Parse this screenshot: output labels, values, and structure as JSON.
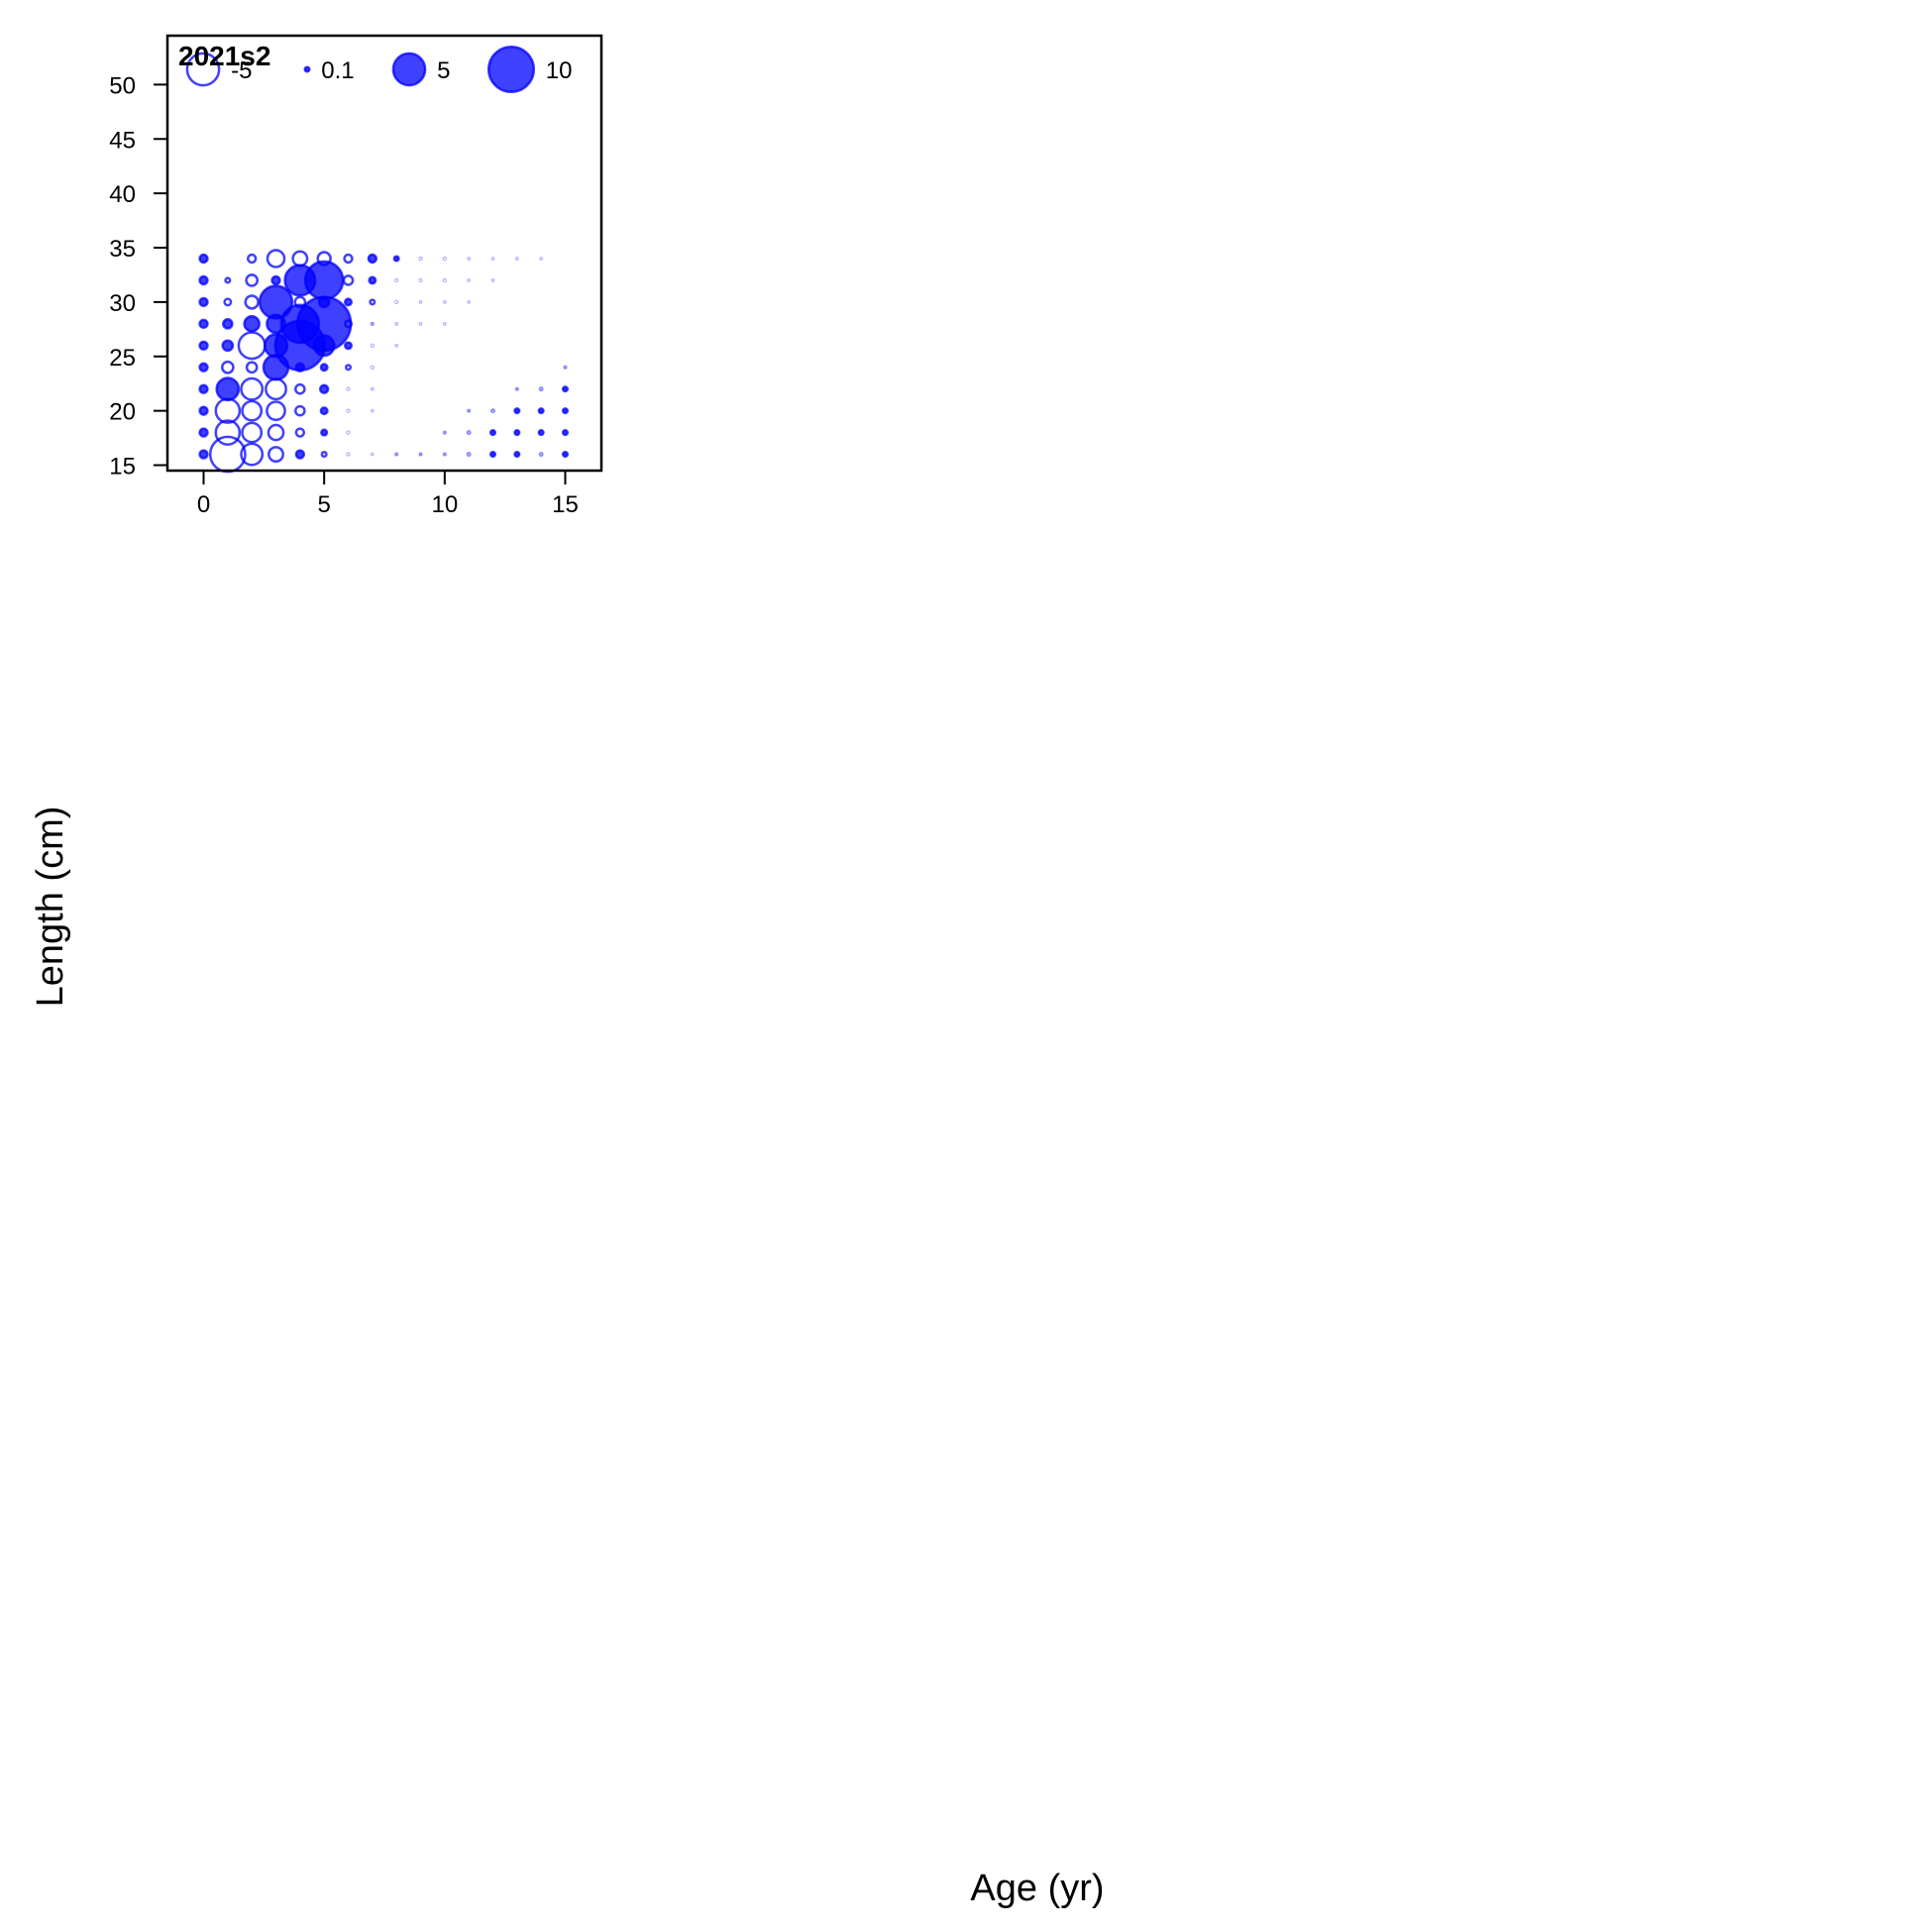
{
  "chart_data": {
    "type": "scatter",
    "subtype": "bubble",
    "panel_title": "2021s2",
    "xlabel": "Age (yr)",
    "ylabel": "Length (cm)",
    "xlim": [
      -1.5,
      16.5
    ],
    "ylim": [
      14.5,
      54.5
    ],
    "xticks": [
      0,
      5,
      10,
      15
    ],
    "yticks": [
      15,
      20,
      25,
      30,
      35,
      40,
      45,
      50
    ],
    "grid": false,
    "color": "#0000ff",
    "marker_style": "positive values filled, negative values hollow",
    "legend": {
      "placement": "top",
      "entries": [
        {
          "label": "-5",
          "value": -5
        },
        {
          "label": "0.1",
          "value": 0.1
        },
        {
          "label": "5",
          "value": 5
        },
        {
          "label": "10",
          "value": 10
        }
      ]
    },
    "points": [
      {
        "age": 0,
        "len": 16,
        "v": 0.3
      },
      {
        "age": 0,
        "len": 18,
        "v": 0.3
      },
      {
        "age": 0,
        "len": 20,
        "v": 0.3
      },
      {
        "age": 0,
        "len": 22,
        "v": 0.3
      },
      {
        "age": 0,
        "len": 24,
        "v": 0.3
      },
      {
        "age": 0,
        "len": 26,
        "v": 0.3
      },
      {
        "age": 0,
        "len": 28,
        "v": 0.3
      },
      {
        "age": 0,
        "len": 30,
        "v": 0.3
      },
      {
        "age": 0,
        "len": 32,
        "v": 0.3
      },
      {
        "age": 0,
        "len": 34,
        "v": 0.3
      },
      {
        "age": 1,
        "len": 16,
        "v": -6
      },
      {
        "age": 1,
        "len": 18,
        "v": -2.8
      },
      {
        "age": 1,
        "len": 20,
        "v": -2.8
      },
      {
        "age": 1,
        "len": 22,
        "v": 2.4
      },
      {
        "age": 1,
        "len": 24,
        "v": -0.6
      },
      {
        "age": 1,
        "len": 26,
        "v": 0.5
      },
      {
        "age": 1,
        "len": 28,
        "v": 0.4
      },
      {
        "age": 1,
        "len": 30,
        "v": -0.2
      },
      {
        "age": 1,
        "len": 32,
        "v": -0.1
      },
      {
        "age": 2,
        "len": 16,
        "v": -2.2
      },
      {
        "age": 2,
        "len": 18,
        "v": -1.8
      },
      {
        "age": 2,
        "len": 20,
        "v": -1.8
      },
      {
        "age": 2,
        "len": 22,
        "v": -2.2
      },
      {
        "age": 2,
        "len": 24,
        "v": -0.5
      },
      {
        "age": 2,
        "len": 26,
        "v": -3.4
      },
      {
        "age": 2,
        "len": 28,
        "v": 1.1
      },
      {
        "age": 2,
        "len": 30,
        "v": -0.8
      },
      {
        "age": 2,
        "len": 32,
        "v": -0.6
      },
      {
        "age": 2,
        "len": 34,
        "v": -0.3
      },
      {
        "age": 3,
        "len": 16,
        "v": -1
      },
      {
        "age": 3,
        "len": 18,
        "v": -1.1
      },
      {
        "age": 3,
        "len": 20,
        "v": -1.6
      },
      {
        "age": 3,
        "len": 22,
        "v": -2
      },
      {
        "age": 3,
        "len": 24,
        "v": 3
      },
      {
        "age": 3,
        "len": 26,
        "v": 2.5
      },
      {
        "age": 3,
        "len": 28,
        "v": 1.6
      },
      {
        "age": 3,
        "len": 30,
        "v": 5.2
      },
      {
        "age": 3,
        "len": 32,
        "v": 0.3
      },
      {
        "age": 3,
        "len": 34,
        "v": -1.4
      },
      {
        "age": 4,
        "len": 16,
        "v": 0.3
      },
      {
        "age": 4,
        "len": 18,
        "v": -0.3
      },
      {
        "age": 4,
        "len": 20,
        "v": -0.4
      },
      {
        "age": 4,
        "len": 22,
        "v": -0.4
      },
      {
        "age": 4,
        "len": 24,
        "v": 0.3
      },
      {
        "age": 4,
        "len": 26,
        "v": 12
      },
      {
        "age": 4,
        "len": 28,
        "v": 7
      },
      {
        "age": 4,
        "len": 30,
        "v": -0.5
      },
      {
        "age": 4,
        "len": 32,
        "v": 4.5
      },
      {
        "age": 4,
        "len": 34,
        "v": -1
      },
      {
        "age": 5,
        "len": 16,
        "v": -0.1
      },
      {
        "age": 5,
        "len": 18,
        "v": 0.15
      },
      {
        "age": 5,
        "len": 20,
        "v": 0.2
      },
      {
        "age": 5,
        "len": 22,
        "v": 0.3
      },
      {
        "age": 5,
        "len": 24,
        "v": 0.2
      },
      {
        "age": 5,
        "len": 26,
        "v": 2
      },
      {
        "age": 5,
        "len": 28,
        "v": 14
      },
      {
        "age": 5,
        "len": 30,
        "v": 0.5
      },
      {
        "age": 5,
        "len": 32,
        "v": 7
      },
      {
        "age": 5,
        "len": 34,
        "v": -0.8
      },
      {
        "age": 6,
        "len": 16,
        "v": -0.05
      },
      {
        "age": 6,
        "len": 18,
        "v": -0.05
      },
      {
        "age": 6,
        "len": 20,
        "v": -0.05
      },
      {
        "age": 6,
        "len": 22,
        "v": -0.05
      },
      {
        "age": 6,
        "len": 24,
        "v": -0.1
      },
      {
        "age": 6,
        "len": 26,
        "v": 0.2
      },
      {
        "age": 6,
        "len": 28,
        "v": -0.2
      },
      {
        "age": 6,
        "len": 30,
        "v": 0.2
      },
      {
        "age": 6,
        "len": 32,
        "v": -0.4
      },
      {
        "age": 6,
        "len": 34,
        "v": -0.3
      },
      {
        "age": 7,
        "len": 16,
        "v": -0.02
      },
      {
        "age": 7,
        "len": 20,
        "v": -0.02
      },
      {
        "age": 7,
        "len": 22,
        "v": -0.02
      },
      {
        "age": 7,
        "len": 24,
        "v": -0.05
      },
      {
        "age": 7,
        "len": 26,
        "v": -0.05
      },
      {
        "age": 7,
        "len": 28,
        "v": 0.05
      },
      {
        "age": 7,
        "len": 30,
        "v": -0.1
      },
      {
        "age": 7,
        "len": 32,
        "v": 0.2
      },
      {
        "age": 7,
        "len": 34,
        "v": 0.3
      },
      {
        "age": 8,
        "len": 16,
        "v": 0.05
      },
      {
        "age": 8,
        "len": 26,
        "v": -0.03
      },
      {
        "age": 8,
        "len": 28,
        "v": -0.03
      },
      {
        "age": 8,
        "len": 30,
        "v": -0.05
      },
      {
        "age": 8,
        "len": 32,
        "v": -0.05
      },
      {
        "age": 8,
        "len": 34,
        "v": 0.1
      },
      {
        "age": 9,
        "len": 16,
        "v": 0.05
      },
      {
        "age": 9,
        "len": 28,
        "v": -0.03
      },
      {
        "age": 9,
        "len": 30,
        "v": -0.03
      },
      {
        "age": 9,
        "len": 32,
        "v": -0.05
      },
      {
        "age": 9,
        "len": 34,
        "v": -0.05
      },
      {
        "age": 10,
        "len": 16,
        "v": 0.05
      },
      {
        "age": 10,
        "len": 18,
        "v": 0.05
      },
      {
        "age": 10,
        "len": 28,
        "v": -0.02
      },
      {
        "age": 10,
        "len": 30,
        "v": -0.02
      },
      {
        "age": 10,
        "len": 32,
        "v": -0.05
      },
      {
        "age": 10,
        "len": 34,
        "v": -0.05
      },
      {
        "age": 11,
        "len": 16,
        "v": 0.08
      },
      {
        "age": 11,
        "len": 18,
        "v": 0.08
      },
      {
        "age": 11,
        "len": 20,
        "v": 0.05
      },
      {
        "age": 11,
        "len": 30,
        "v": -0.02
      },
      {
        "age": 11,
        "len": 32,
        "v": -0.03
      },
      {
        "age": 11,
        "len": 34,
        "v": -0.03
      },
      {
        "age": 12,
        "len": 16,
        "v": 0.1
      },
      {
        "age": 12,
        "len": 18,
        "v": 0.1
      },
      {
        "age": 12,
        "len": 20,
        "v": 0.08
      },
      {
        "age": 12,
        "len": 32,
        "v": -0.02
      },
      {
        "age": 12,
        "len": 34,
        "v": -0.02
      },
      {
        "age": 13,
        "len": 16,
        "v": 0.1
      },
      {
        "age": 13,
        "len": 18,
        "v": 0.1
      },
      {
        "age": 13,
        "len": 20,
        "v": 0.1
      },
      {
        "age": 13,
        "len": 22,
        "v": 0.05
      },
      {
        "age": 13,
        "len": 34,
        "v": -0.02
      },
      {
        "age": 14,
        "len": 16,
        "v": 0.08
      },
      {
        "age": 14,
        "len": 18,
        "v": 0.1
      },
      {
        "age": 14,
        "len": 20,
        "v": 0.1
      },
      {
        "age": 14,
        "len": 22,
        "v": 0.08
      },
      {
        "age": 14,
        "len": 34,
        "v": -0.01
      },
      {
        "age": 15,
        "len": 16,
        "v": 0.1
      },
      {
        "age": 15,
        "len": 18,
        "v": 0.1
      },
      {
        "age": 15,
        "len": 20,
        "v": 0.1
      },
      {
        "age": 15,
        "len": 22,
        "v": 0.1
      },
      {
        "age": 15,
        "len": 24,
        "v": 0.05
      }
    ]
  }
}
